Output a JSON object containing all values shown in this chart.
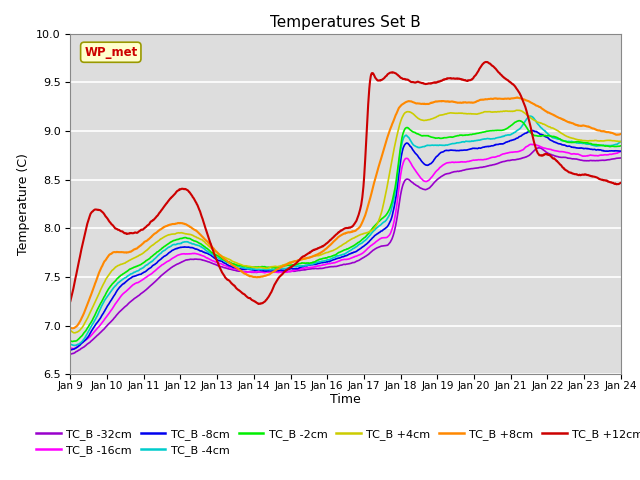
{
  "title": "Temperatures Set B",
  "xlabel": "Time",
  "ylabel": "Temperature (C)",
  "ylim": [
    6.5,
    10.0
  ],
  "xlim": [
    0,
    15
  ],
  "xtick_labels": [
    "Jan 9",
    "Jan 10",
    "Jan 11",
    "Jan 12",
    "Jan 13",
    "Jan 14",
    "Jan 15",
    "Jan 16",
    "Jan 17",
    "Jan 18",
    "Jan 19",
    "Jan 20",
    "Jan 21",
    "Jan 22",
    "Jan 23",
    "Jan 24"
  ],
  "series_order": [
    "TC_B -32cm",
    "TC_B -16cm",
    "TC_B -8cm",
    "TC_B -4cm",
    "TC_B -2cm",
    "TC_B +4cm",
    "TC_B +8cm",
    "TC_B +12cm"
  ],
  "series": {
    "TC_B -32cm": {
      "color": "#9900cc",
      "lw": 1.2
    },
    "TC_B -16cm": {
      "color": "#ff00ff",
      "lw": 1.2
    },
    "TC_B -8cm": {
      "color": "#0000ee",
      "lw": 1.2
    },
    "TC_B -4cm": {
      "color": "#00cccc",
      "lw": 1.2
    },
    "TC_B -2cm": {
      "color": "#00ee00",
      "lw": 1.2
    },
    "TC_B +4cm": {
      "color": "#cccc00",
      "lw": 1.2
    },
    "TC_B +8cm": {
      "color": "#ff8800",
      "lw": 1.5
    },
    "TC_B +12cm": {
      "color": "#cc0000",
      "lw": 1.5
    }
  },
  "wp_met_color": "#cc0000",
  "wp_met_bg": "#ffffcc",
  "background_color": "#dddddd",
  "grid_color": "#ffffff"
}
